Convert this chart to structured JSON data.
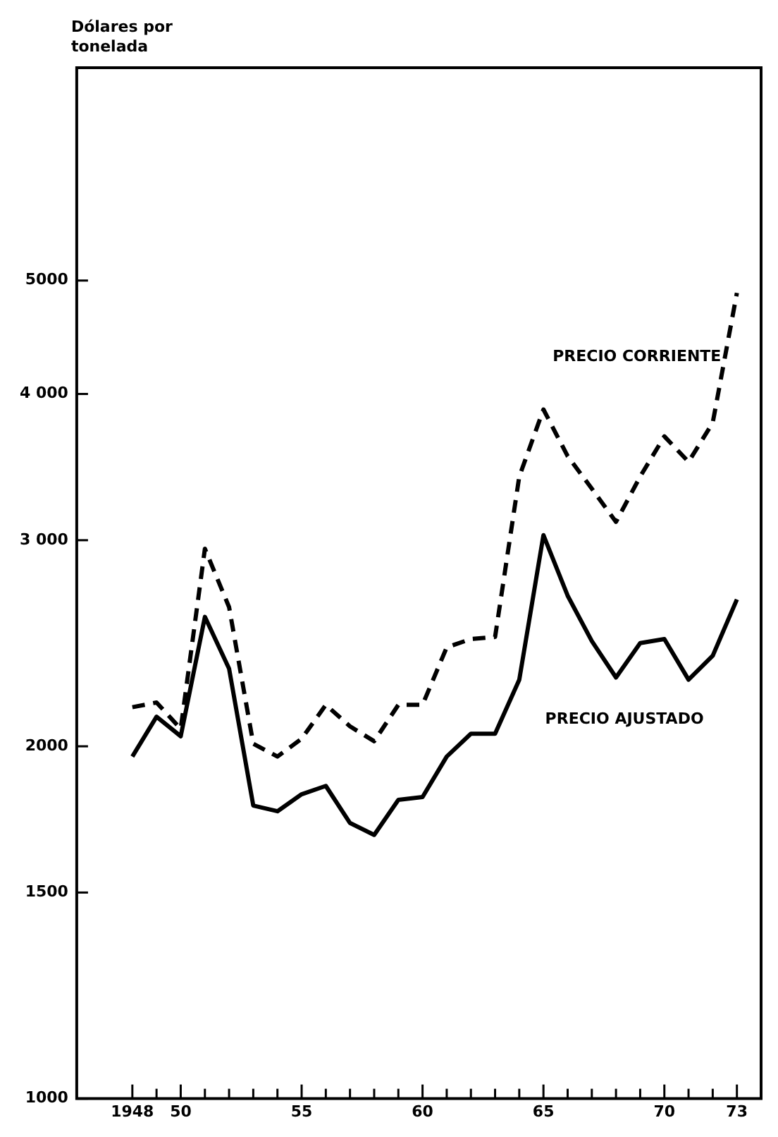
{
  "chart_data": {
    "type": "line",
    "ylabel": "Dólares por\ntonelada",
    "log": "y",
    "grid": false,
    "legend": false,
    "marker": "none",
    "x": [
      1948,
      1949,
      1950,
      1951,
      1952,
      1953,
      1954,
      1955,
      1956,
      1957,
      1958,
      1959,
      1960,
      1961,
      1962,
      1963,
      1964,
      1965,
      1966,
      1967,
      1968,
      1969,
      1970,
      1971,
      1972,
      1973
    ],
    "series": [
      {
        "name": "PRECIO CORRIENTE",
        "color": "#000000",
        "line_style": "dashed",
        "values": [
          2160,
          2180,
          2070,
          2950,
          2630,
          2010,
          1960,
          2030,
          2170,
          2080,
          2020,
          2170,
          2170,
          2430,
          2470,
          2480,
          3400,
          3880,
          3540,
          3320,
          3110,
          3400,
          3680,
          3500,
          3780,
          4880
        ]
      },
      {
        "name": "PRECIO AJUSTADO",
        "color": "#000000",
        "line_style": "solid",
        "values": [
          1960,
          2120,
          2040,
          2580,
          2330,
          1780,
          1760,
          1820,
          1850,
          1720,
          1680,
          1800,
          1810,
          1960,
          2050,
          2050,
          2280,
          3030,
          2690,
          2460,
          2290,
          2450,
          2470,
          2280,
          2390,
          2670
        ]
      }
    ],
    "xlim": [
      1945.7,
      1974.0
    ],
    "ylim": [
      1000,
      7600
    ],
    "xticks": [
      1948,
      {
        "value": 1949,
        "label": null
      },
      {
        "value": 1950,
        "label": "50"
      },
      {
        "value": 1951,
        "label": null
      },
      {
        "value": 1952,
        "label": null
      },
      {
        "value": 1953,
        "label": null
      },
      {
        "value": 1954,
        "label": null
      },
      {
        "value": 1955,
        "label": "55"
      },
      {
        "value": 1956,
        "label": null
      },
      {
        "value": 1957,
        "label": null
      },
      {
        "value": 1958,
        "label": null
      },
      {
        "value": 1959,
        "label": null
      },
      {
        "value": 1960,
        "label": "60"
      },
      {
        "value": 1961,
        "label": null
      },
      {
        "value": 1962,
        "label": null
      },
      {
        "value": 1963,
        "label": null
      },
      {
        "value": 1964,
        "label": null
      },
      {
        "value": 1965,
        "label": "65"
      },
      {
        "value": 1966,
        "label": null
      },
      {
        "value": 1967,
        "label": null
      },
      {
        "value": 1968,
        "label": null
      },
      {
        "value": 1969,
        "label": null
      },
      {
        "value": 1970,
        "label": "70"
      },
      {
        "value": 1971,
        "label": null
      },
      {
        "value": 1972,
        "label": null
      },
      {
        "value": 1973,
        "label": "73"
      }
    ],
    "yticks": [
      1000,
      1500,
      2000,
      {
        "value": 3000,
        "label": "3 000"
      },
      {
        "value": 4000,
        "label": "4 000"
      },
      5000
    ]
  }
}
